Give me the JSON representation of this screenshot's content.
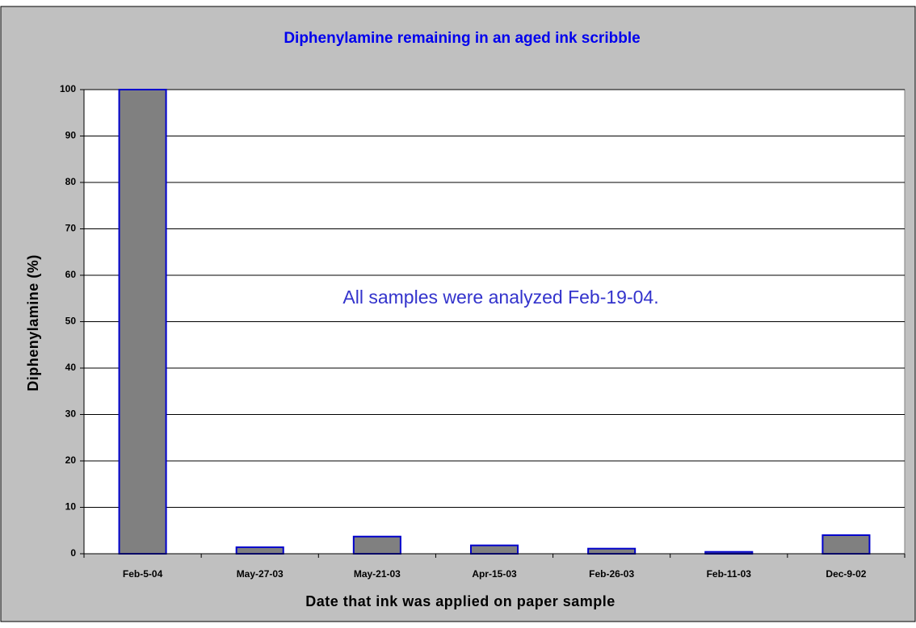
{
  "chart_data": {
    "type": "bar",
    "title": "Diphenylamine remaining in an aged ink scribble",
    "xlabel": "Date that ink was applied on paper sample",
    "ylabel": "Diphenylamine (%)",
    "annotation": "All samples were analyzed Feb-19-04.",
    "categories": [
      "Feb-5-04",
      "May-27-03",
      "May-21-03",
      "Apr-15-03",
      "Feb-26-03",
      "Feb-11-03",
      "Dec-9-02"
    ],
    "values": [
      100,
      1.4,
      3.7,
      1.8,
      1.1,
      0.4,
      4.0
    ],
    "color": "#808080",
    "edge_color": "#0000cc",
    "ylim": [
      0,
      100
    ],
    "yticks": [
      0,
      10,
      20,
      30,
      40,
      50,
      60,
      70,
      80,
      90,
      100
    ],
    "grid": true
  }
}
